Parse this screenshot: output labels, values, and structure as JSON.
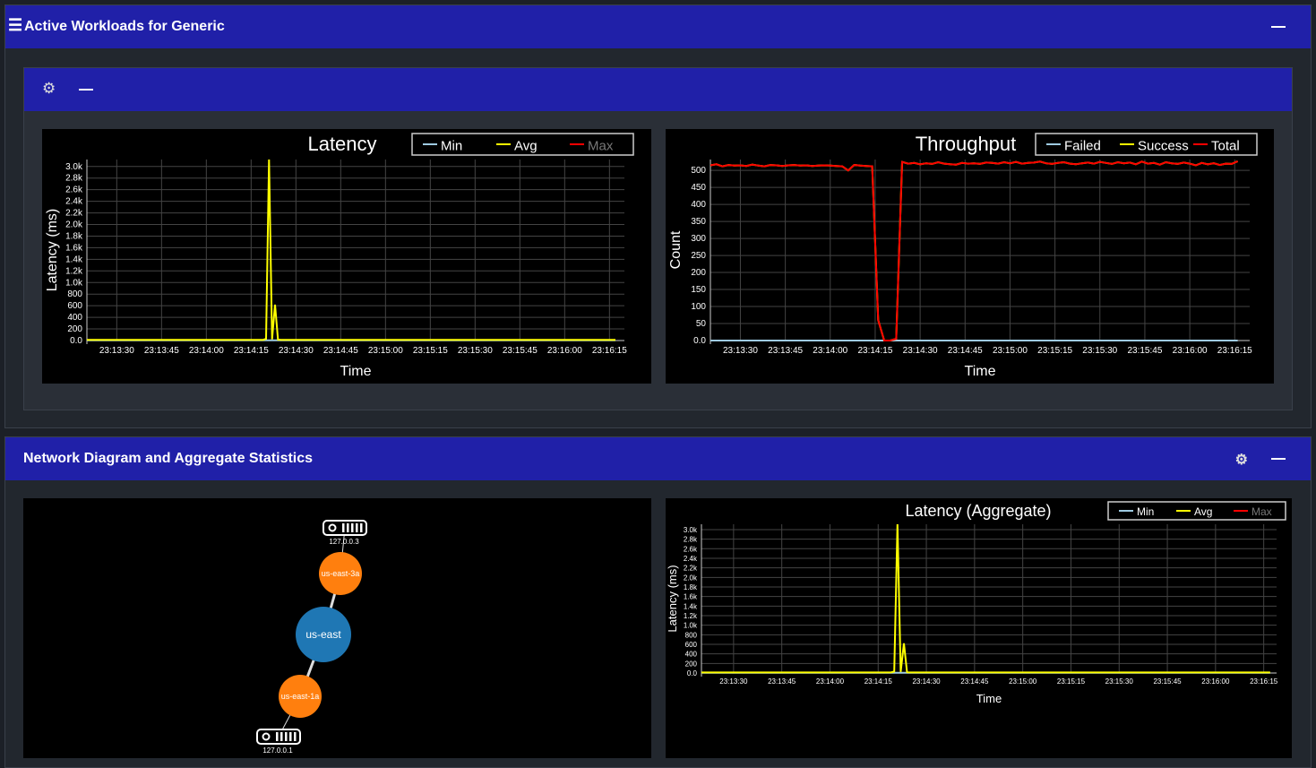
{
  "panel1": {
    "title": "Active Workloads for Generic",
    "menu_icon": "hamburger-icon",
    "collapse_icon": "minus-icon"
  },
  "card1": {
    "settings_icon": "gear-icon",
    "collapse_icon": "minus-icon"
  },
  "panel2": {
    "title": "Network Diagram and Aggregate Statistics",
    "settings_icon": "gear-icon",
    "collapse_icon": "minus-icon"
  },
  "network": {
    "nodes": [
      {
        "label": "127.0.0.3",
        "type": "server",
        "icon": "server-icon"
      },
      {
        "label": "us-east-3a",
        "type": "zone",
        "color": "#ff7f0e"
      },
      {
        "label": "us-east",
        "type": "region",
        "color": "#1f77b4"
      },
      {
        "label": "us-east-1a",
        "type": "zone",
        "color": "#ff7f0e"
      },
      {
        "label": "127.0.0.1",
        "type": "server",
        "icon": "server-icon"
      }
    ],
    "edges": [
      [
        "127.0.0.3",
        "us-east-3a"
      ],
      [
        "us-east-3a",
        "us-east"
      ],
      [
        "us-east",
        "us-east-1a"
      ],
      [
        "us-east-1a",
        "127.0.0.1"
      ]
    ]
  },
  "chart_data": [
    {
      "type": "line",
      "title": "Latency",
      "xlabel": "Time",
      "ylabel": "Latency (ms)",
      "ylim": [
        0,
        3120
      ],
      "xlim": [
        "23:13:20",
        "23:16:20"
      ],
      "grid": true,
      "legend": "top-right",
      "yticks": [
        "0.0",
        "200",
        "400",
        "600",
        "800",
        "1.0k",
        "1.2k",
        "1.4k",
        "1.6k",
        "1.8k",
        "2.0k",
        "2.2k",
        "2.4k",
        "2.6k",
        "2.8k",
        "3.0k"
      ],
      "ytick_values": [
        0,
        200,
        400,
        600,
        800,
        1000,
        1200,
        1400,
        1600,
        1800,
        2000,
        2200,
        2400,
        2600,
        2800,
        3000
      ],
      "xticks": [
        "23:13:30",
        "23:13:45",
        "23:14:00",
        "23:14:15",
        "23:14:30",
        "23:14:45",
        "23:15:00",
        "23:15:15",
        "23:15:30",
        "23:15:45",
        "23:16:00",
        "23:16:15"
      ],
      "series": [
        {
          "name": "Min",
          "color": "#9ecae1",
          "x": [
            "23:13:20",
            "23:16:17"
          ],
          "y": [
            5,
            5
          ]
        },
        {
          "name": "Avg",
          "color": "#ffff00",
          "x": [
            "23:13:20",
            "23:14:19",
            "23:14:20",
            "23:14:21",
            "23:14:22",
            "23:14:23",
            "23:14:24",
            "23:14:25",
            "23:16:17"
          ],
          "y": [
            12,
            12,
            30,
            3150,
            20,
            620,
            15,
            12,
            12
          ]
        },
        {
          "name": "Max",
          "color": "#ff0000",
          "hidden": true,
          "x": [],
          "y": []
        }
      ]
    },
    {
      "type": "line",
      "title": "Throughput",
      "xlabel": "Time",
      "ylabel": "Count",
      "ylim": [
        0,
        532
      ],
      "xlim": [
        "23:13:20",
        "23:16:20"
      ],
      "grid": true,
      "legend": "top-right",
      "yticks": [
        "0.0",
        "50",
        "100",
        "150",
        "200",
        "250",
        "300",
        "350",
        "400",
        "450",
        "500"
      ],
      "ytick_values": [
        0,
        50,
        100,
        150,
        200,
        250,
        300,
        350,
        400,
        450,
        500
      ],
      "xticks": [
        "23:13:30",
        "23:13:45",
        "23:14:00",
        "23:14:15",
        "23:14:30",
        "23:14:45",
        "23:15:00",
        "23:15:15",
        "23:15:30",
        "23:15:45",
        "23:16:00",
        "23:16:15"
      ],
      "x": [
        "23:13:20",
        "23:13:22",
        "23:13:24",
        "23:13:26",
        "23:13:28",
        "23:13:30",
        "23:13:32",
        "23:13:34",
        "23:13:36",
        "23:13:38",
        "23:13:40",
        "23:13:42",
        "23:13:44",
        "23:13:46",
        "23:13:48",
        "23:13:50",
        "23:13:52",
        "23:13:54",
        "23:13:56",
        "23:13:58",
        "23:14:00",
        "23:14:02",
        "23:14:04",
        "23:14:06",
        "23:14:08",
        "23:14:10",
        "23:14:12",
        "23:14:14",
        "23:14:16",
        "23:14:18",
        "23:14:20",
        "23:14:22",
        "23:14:24",
        "23:14:26",
        "23:14:28",
        "23:14:30",
        "23:14:32",
        "23:14:34",
        "23:14:36",
        "23:14:38",
        "23:14:40",
        "23:14:42",
        "23:14:44",
        "23:14:46",
        "23:14:48",
        "23:14:50",
        "23:14:52",
        "23:14:54",
        "23:14:56",
        "23:14:58",
        "23:15:00",
        "23:15:02",
        "23:15:04",
        "23:15:06",
        "23:15:08",
        "23:15:10",
        "23:15:12",
        "23:15:14",
        "23:15:16",
        "23:15:18",
        "23:15:20",
        "23:15:22",
        "23:15:24",
        "23:15:26",
        "23:15:28",
        "23:15:30",
        "23:15:32",
        "23:15:34",
        "23:15:36",
        "23:15:38",
        "23:15:40",
        "23:15:42",
        "23:15:44",
        "23:15:46",
        "23:15:48",
        "23:15:50",
        "23:15:52",
        "23:15:54",
        "23:15:56",
        "23:15:58",
        "23:16:00",
        "23:16:02",
        "23:16:04",
        "23:16:06",
        "23:16:08",
        "23:16:10",
        "23:16:12",
        "23:16:14",
        "23:16:16"
      ],
      "series": [
        {
          "name": "Failed",
          "color": "#9ecae1",
          "values": "zeros"
        },
        {
          "name": "Success",
          "color": "#ffff00",
          "values": [
            515,
            518,
            512,
            516,
            514,
            515,
            513,
            517,
            514,
            512,
            516,
            515,
            513,
            515,
            516,
            514,
            515,
            513,
            514,
            515,
            514,
            513,
            512,
            500,
            516,
            514,
            513,
            512,
            60,
            0,
            0,
            5,
            525,
            520,
            522,
            518,
            521,
            519,
            524,
            520,
            518,
            517,
            522,
            520,
            521,
            519,
            523,
            522,
            520,
            524,
            521,
            525,
            520,
            522,
            523,
            526,
            521,
            519,
            522,
            524,
            520,
            518,
            521,
            523,
            520,
            525,
            522,
            519,
            524,
            521,
            523,
            518,
            526,
            520,
            522,
            517,
            524,
            521,
            519,
            523,
            520,
            515,
            522,
            518,
            521,
            516,
            520,
            519,
            527
          ]
        },
        {
          "name": "Total",
          "color": "#ff0000",
          "values": [
            515,
            518,
            512,
            516,
            514,
            515,
            513,
            517,
            514,
            512,
            516,
            515,
            513,
            515,
            516,
            514,
            515,
            513,
            514,
            515,
            514,
            513,
            512,
            500,
            516,
            514,
            513,
            512,
            60,
            0,
            0,
            5,
            525,
            520,
            522,
            518,
            521,
            519,
            524,
            520,
            518,
            517,
            522,
            520,
            521,
            519,
            523,
            522,
            520,
            524,
            521,
            525,
            520,
            522,
            523,
            526,
            521,
            519,
            522,
            524,
            520,
            518,
            521,
            523,
            520,
            525,
            522,
            519,
            524,
            521,
            523,
            518,
            526,
            520,
            522,
            517,
            524,
            521,
            519,
            523,
            520,
            515,
            522,
            518,
            521,
            516,
            520,
            519,
            527
          ]
        }
      ]
    },
    {
      "type": "line",
      "title": "Latency (Aggregate)",
      "xlabel": "Time",
      "ylabel": "Latency (ms)",
      "ylim": [
        0,
        3112
      ],
      "xlim": [
        "23:13:20",
        "23:16:19"
      ],
      "grid": true,
      "legend": "top-right",
      "yticks": [
        "0.0",
        "200",
        "400",
        "600",
        "800",
        "1.0k",
        "1.2k",
        "1.4k",
        "1.6k",
        "1.8k",
        "2.0k",
        "2.2k",
        "2.4k",
        "2.6k",
        "2.8k",
        "3.0k"
      ],
      "ytick_values": [
        0,
        200,
        400,
        600,
        800,
        1000,
        1200,
        1400,
        1600,
        1800,
        2000,
        2200,
        2400,
        2600,
        2800,
        3000
      ],
      "xticks": [
        "23:13:30",
        "23:13:45",
        "23:14:00",
        "23:14:15",
        "23:14:30",
        "23:14:45",
        "23:15:00",
        "23:15:15",
        "23:15:30",
        "23:15:45",
        "23:16:00",
        "23:16:15"
      ],
      "series": [
        {
          "name": "Min",
          "color": "#9ecae1",
          "x": [
            "23:13:20",
            "23:16:17"
          ],
          "y": [
            5,
            5
          ]
        },
        {
          "name": "Avg",
          "color": "#ffff00",
          "x": [
            "23:13:20",
            "23:14:19",
            "23:14:20",
            "23:14:21",
            "23:14:22",
            "23:14:23",
            "23:14:24",
            "23:14:25",
            "23:16:17"
          ],
          "y": [
            12,
            12,
            30,
            3150,
            20,
            620,
            15,
            12,
            12
          ]
        },
        {
          "name": "Max",
          "color": "#ff0000",
          "hidden": true,
          "x": [],
          "y": []
        }
      ]
    }
  ]
}
